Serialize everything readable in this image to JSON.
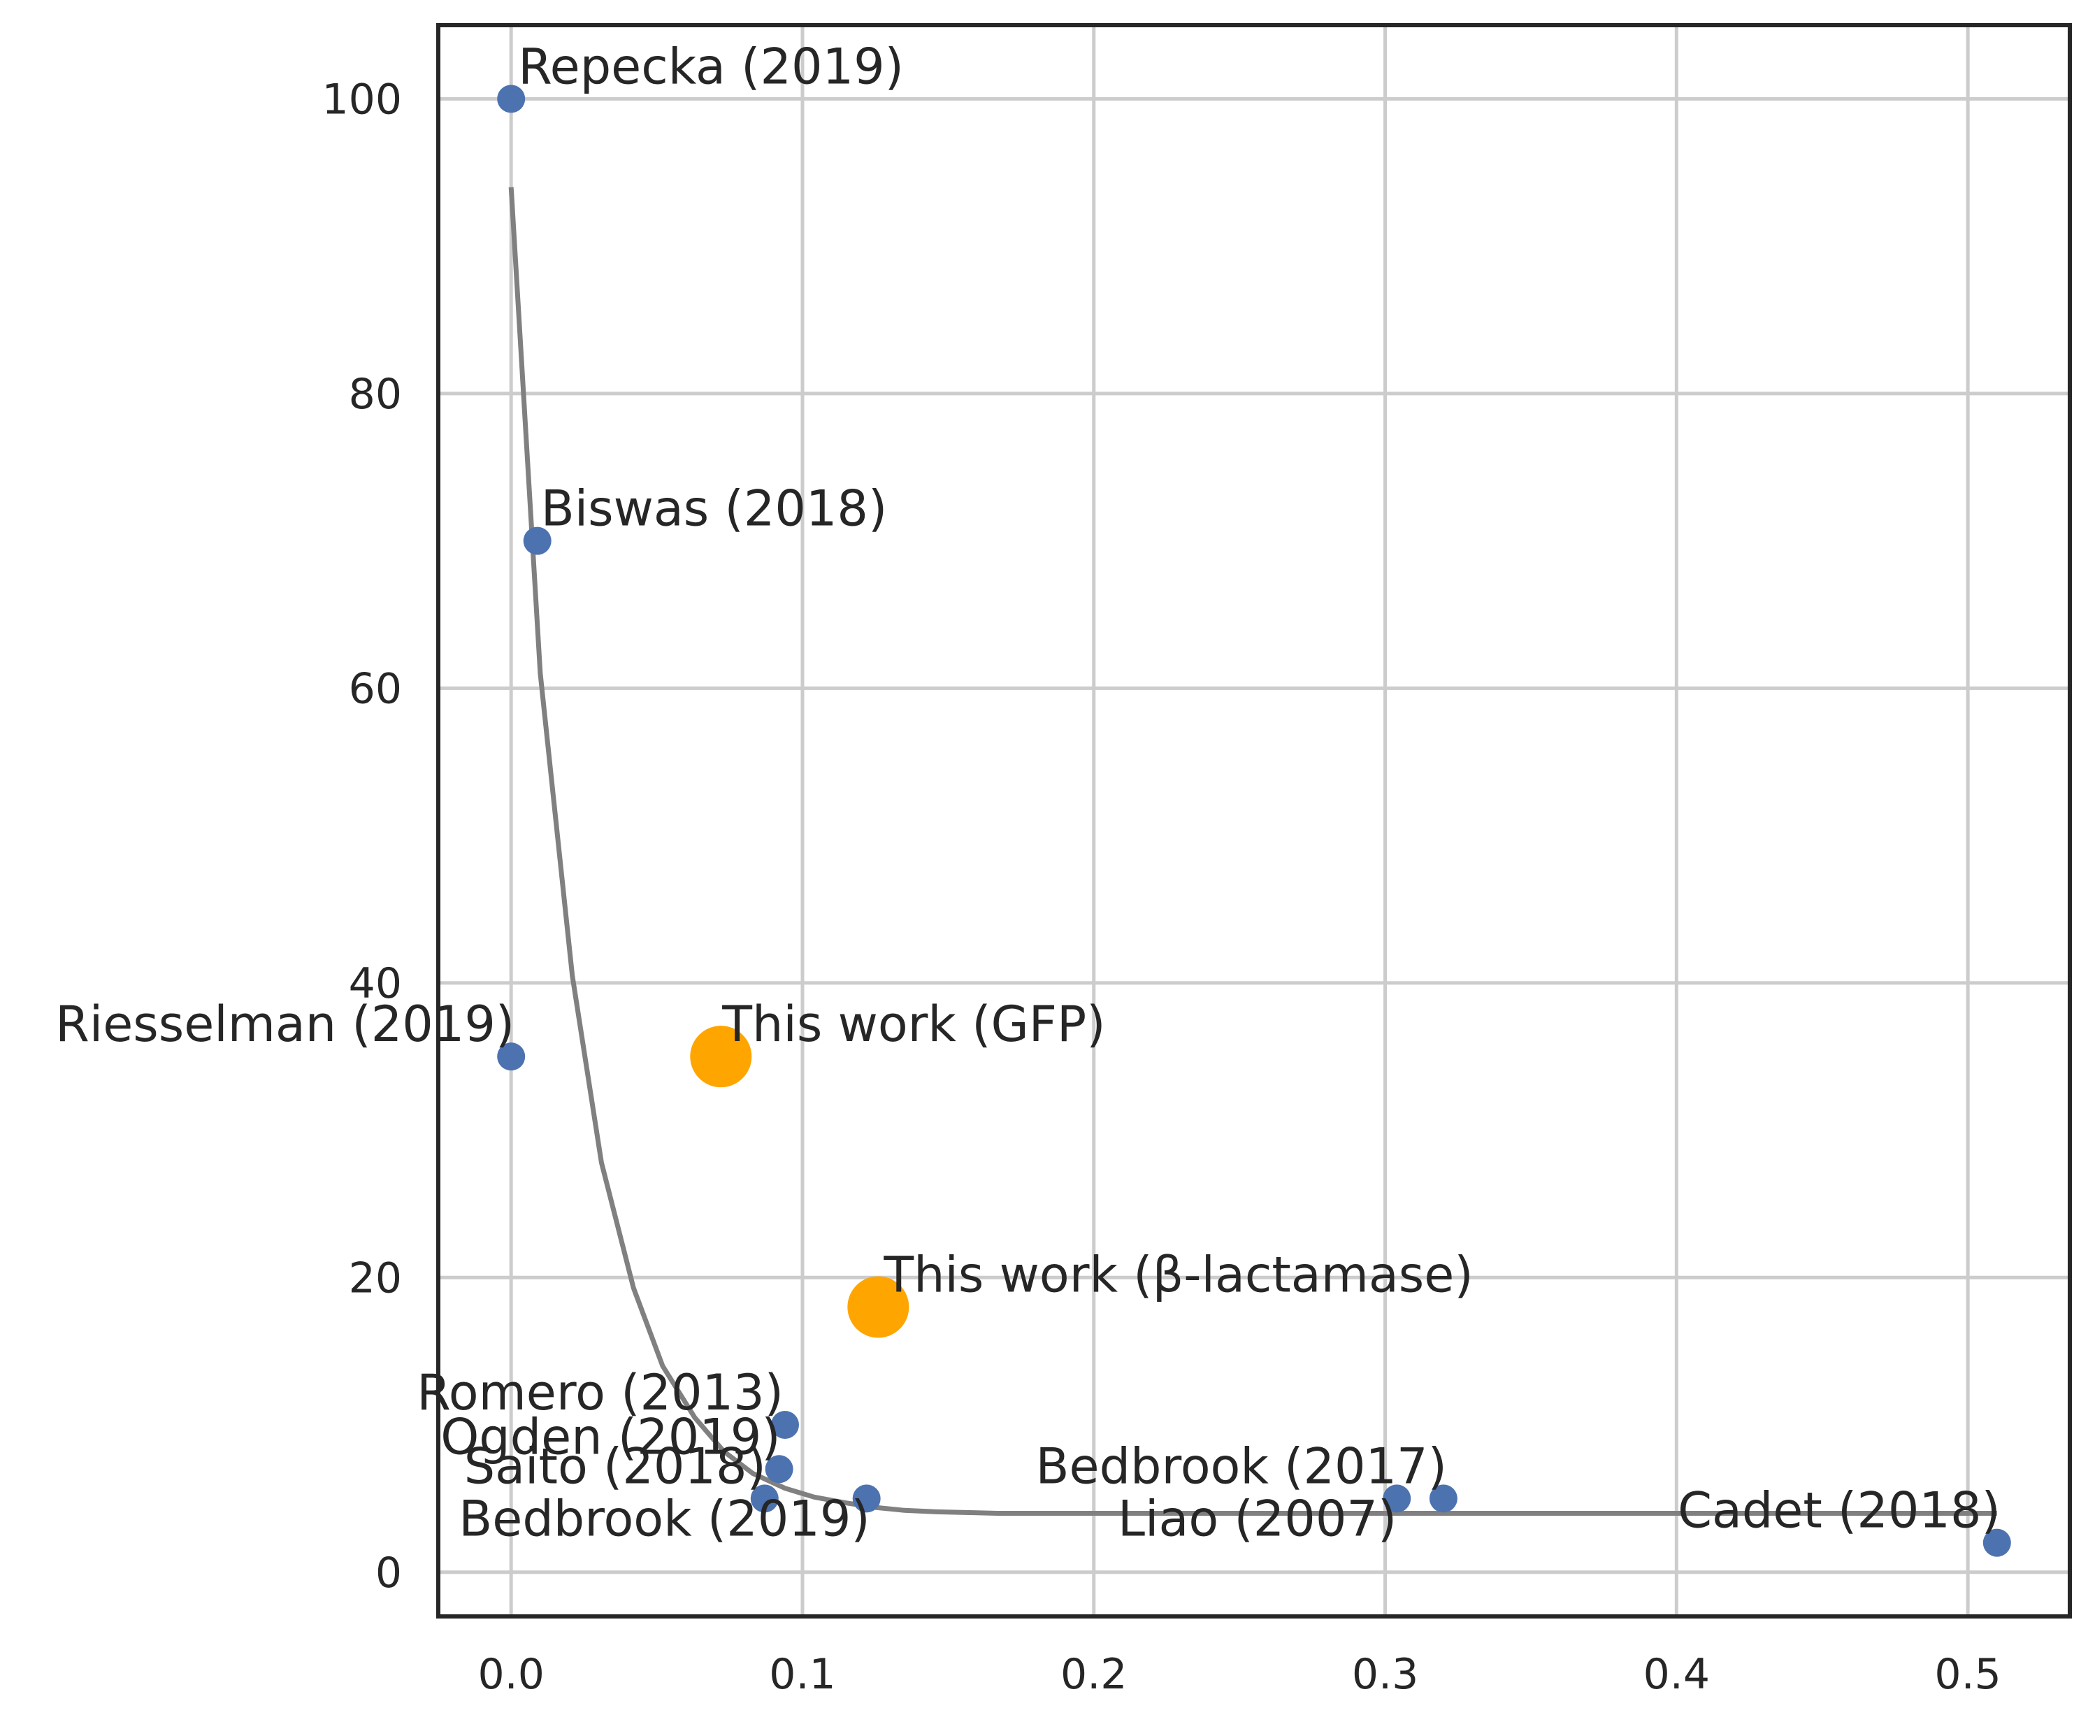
{
  "chart_data": {
    "type": "scatter",
    "title": "",
    "xlabel": "",
    "ylabel": "",
    "xlim": [
      -0.025,
      0.535
    ],
    "ylim": [
      -3,
      105
    ],
    "xticks": [
      "0.0",
      "0.1",
      "0.2",
      "0.3",
      "0.4",
      "0.5"
    ],
    "xtick_values": [
      0.0,
      0.1,
      0.2,
      0.3,
      0.4,
      0.5
    ],
    "yticks": [
      "0",
      "20",
      "40",
      "60",
      "80",
      "100"
    ],
    "ytick_values": [
      0,
      20,
      40,
      60,
      80,
      100
    ],
    "grid": true,
    "colors": {
      "prior": "#4c72b0",
      "this_work": "#ffa500",
      "fit": "#808080"
    },
    "points": [
      {
        "label": "Repecka (2019)",
        "x": 0.0,
        "y": 100,
        "group": "prior"
      },
      {
        "label": "Biswas (2018)",
        "x": 0.009,
        "y": 70,
        "group": "prior"
      },
      {
        "label": "Riesselman (2019)",
        "x": 0.0,
        "y": 35,
        "group": "prior"
      },
      {
        "label": "This work (GFP)",
        "x": 0.072,
        "y": 35,
        "group": "this_work"
      },
      {
        "label": "This work (β-lactamase)",
        "x": 0.126,
        "y": 18,
        "group": "this_work"
      },
      {
        "label": "Romero (2013)",
        "x": 0.094,
        "y": 10,
        "group": "prior"
      },
      {
        "label": "Ogden (2019)",
        "x": 0.092,
        "y": 7,
        "group": "prior"
      },
      {
        "label": "Saito (2018)",
        "x": 0.087,
        "y": 5,
        "group": "prior"
      },
      {
        "label": "Bedbrook (2019)",
        "x": 0.122,
        "y": 5,
        "group": "prior"
      },
      {
        "label": "Bedbrook (2017)",
        "x": 0.32,
        "y": 5,
        "group": "prior"
      },
      {
        "label": "Liao (2007)",
        "x": 0.304,
        "y": 5,
        "group": "prior"
      },
      {
        "label": "Cadet (2018)",
        "x": 0.51,
        "y": 2,
        "group": "prior"
      }
    ],
    "fit_line": {
      "x": [
        0.0,
        0.01,
        0.021,
        0.031,
        0.042,
        0.052,
        0.063,
        0.073,
        0.083,
        0.094,
        0.104,
        0.115,
        0.125,
        0.135,
        0.146,
        0.156,
        0.167,
        0.2,
        0.3,
        0.4,
        0.51
      ],
      "y": [
        94,
        61,
        40.5,
        27.8,
        19.3,
        14,
        10.5,
        8.2,
        6.7,
        5.7,
        5.1,
        4.7,
        4.4,
        4.2,
        4.1,
        4.05,
        4.0,
        4.0,
        4.0,
        4.0,
        4.0
      ]
    }
  }
}
